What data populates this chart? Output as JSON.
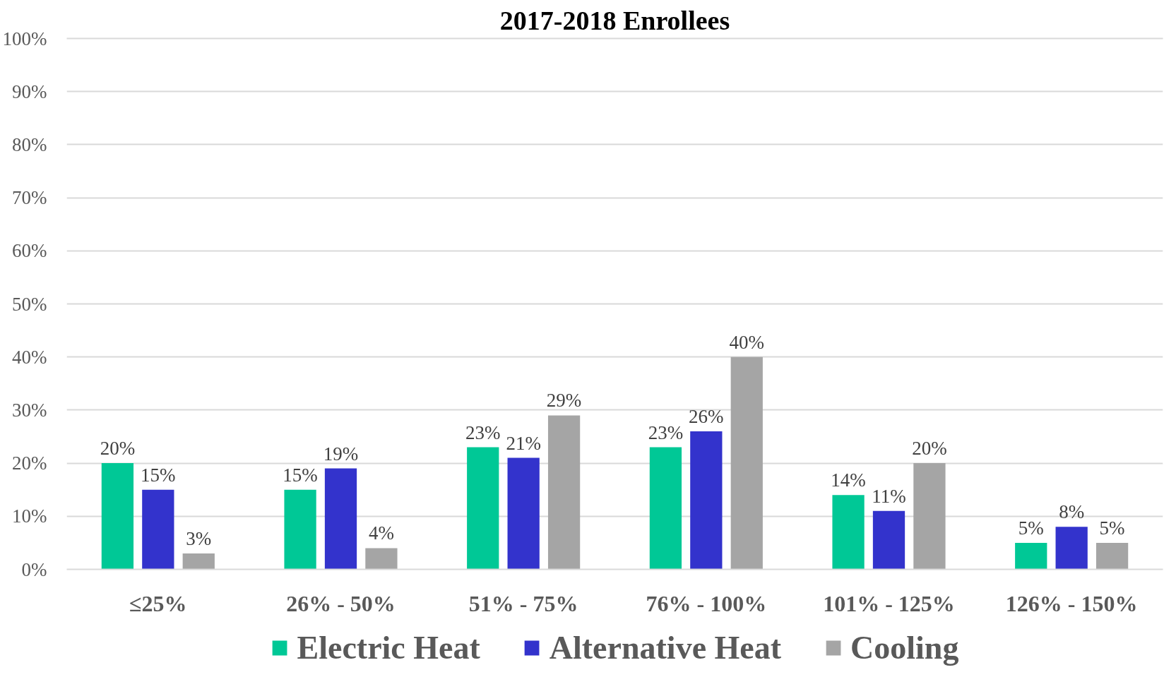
{
  "chart_data": {
    "type": "bar",
    "title": "2017-2018 Enrollees",
    "categories": [
      "≤25%",
      "26% - 50%",
      "51% - 75%",
      "76% - 100%",
      "101% - 125%",
      "126% - 150%"
    ],
    "series": [
      {
        "name": "Electric Heat",
        "color": "#00c896",
        "values": [
          20,
          15,
          23,
          23,
          14,
          5
        ],
        "value_labels": [
          "20%",
          "15%",
          "23%",
          "23%",
          "14%",
          "5%"
        ]
      },
      {
        "name": "Alternative Heat",
        "color": "#3333cc",
        "values": [
          15,
          19,
          21,
          26,
          11,
          8
        ],
        "value_labels": [
          "15%",
          "19%",
          "21%",
          "26%",
          "11%",
          "8%"
        ]
      },
      {
        "name": "Cooling",
        "color": "#a5a5a5",
        "values": [
          3,
          4,
          29,
          40,
          20,
          5
        ],
        "value_labels": [
          "3%",
          "4%",
          "29%",
          "40%",
          "20%",
          "5%"
        ]
      }
    ],
    "ylim": [
      0,
      100
    ],
    "yticks": [
      {
        "value": 0,
        "label": "0%"
      },
      {
        "value": 10,
        "label": "10%"
      },
      {
        "value": 20,
        "label": "20%"
      },
      {
        "value": 30,
        "label": "30%"
      },
      {
        "value": 40,
        "label": "40%"
      },
      {
        "value": 50,
        "label": "50%"
      },
      {
        "value": 60,
        "label": "60%"
      },
      {
        "value": 70,
        "label": "70%"
      },
      {
        "value": 80,
        "label": "80%"
      },
      {
        "value": 90,
        "label": "90%"
      },
      {
        "value": 100,
        "label": "100%"
      }
    ],
    "grid": "y",
    "legend": "bottom"
  }
}
